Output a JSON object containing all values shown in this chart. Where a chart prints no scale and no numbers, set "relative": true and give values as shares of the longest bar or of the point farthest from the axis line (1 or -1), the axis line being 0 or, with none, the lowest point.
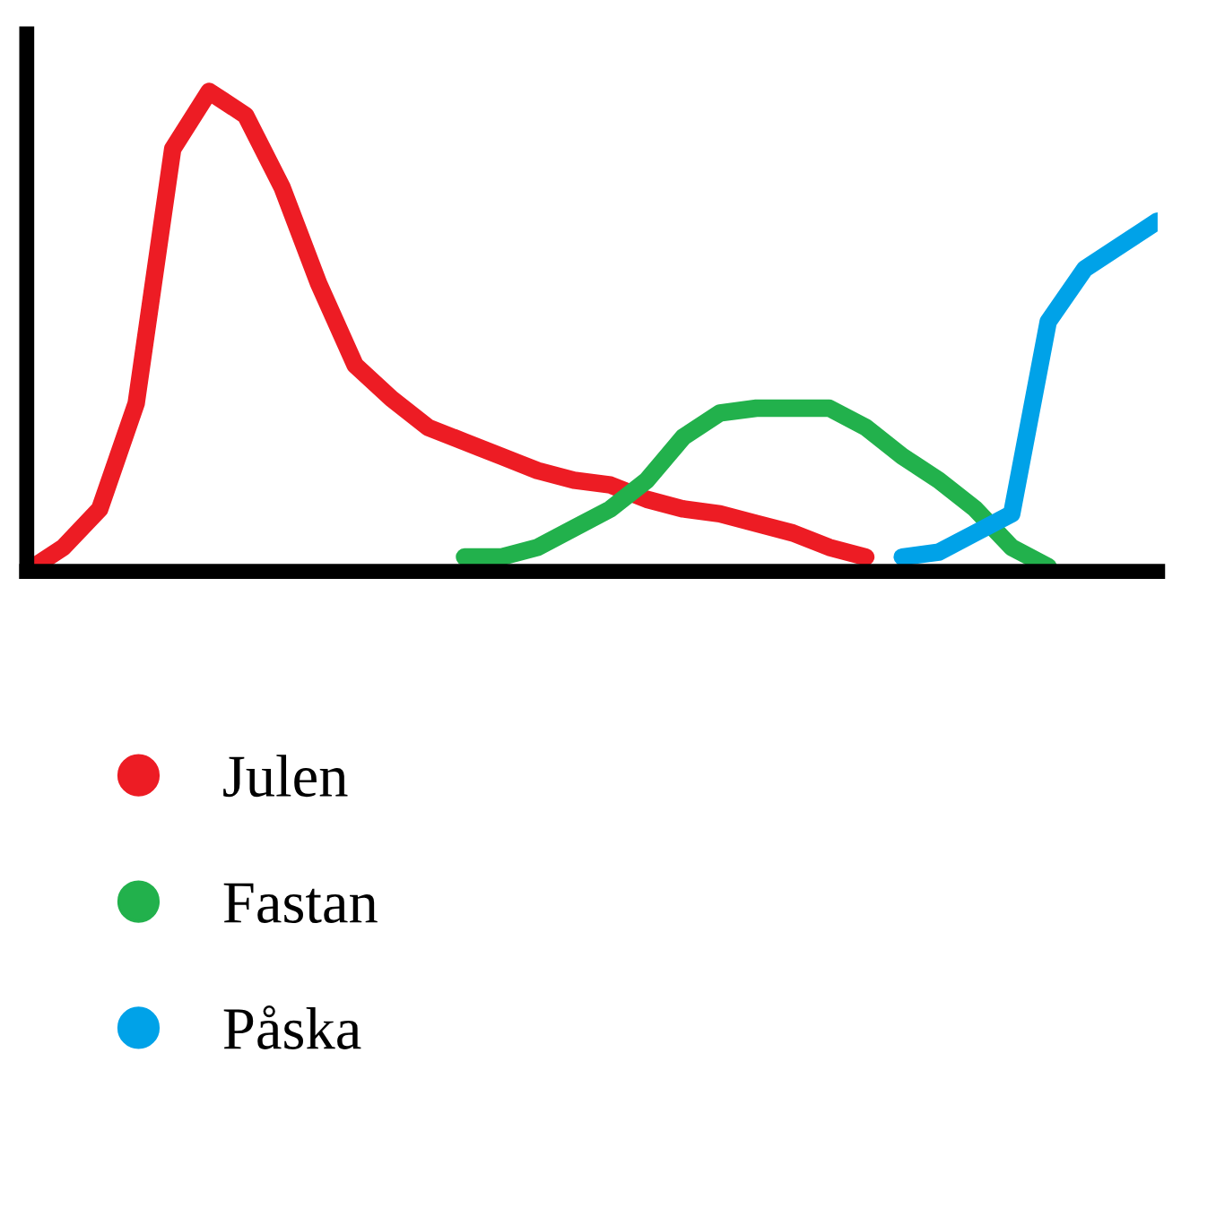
{
  "chart_data": {
    "type": "line",
    "relative": true,
    "legend": "bottom",
    "marker": "none",
    "line_style": "solid",
    "categories": [
      null,
      null,
      null,
      null,
      null,
      null,
      null,
      null,
      null,
      null,
      null,
      null,
      null,
      null,
      null,
      null,
      null,
      null,
      null,
      null,
      null,
      null,
      null,
      null,
      null,
      null,
      null,
      null,
      null,
      null,
      null,
      null
    ],
    "series": [
      {
        "name": "Julen",
        "color": "#ed1c24",
        "values": [
          0,
          0.05,
          0.13,
          0.35,
          0.88,
          1.0,
          0.95,
          0.8,
          0.6,
          0.43,
          0.36,
          0.3,
          0.27,
          0.24,
          0.21,
          0.19,
          0.18,
          0.15,
          0.13,
          0.12,
          0.1,
          0.08,
          0.05,
          0.03,
          null,
          null,
          null,
          null,
          null,
          null,
          null,
          null
        ]
      },
      {
        "name": "Fastan",
        "color": "#22b14c",
        "values": [
          null,
          null,
          null,
          null,
          null,
          null,
          null,
          null,
          null,
          null,
          null,
          null,
          0.03,
          0.03,
          0.05,
          0.09,
          0.13,
          0.19,
          0.28,
          0.33,
          0.34,
          0.34,
          0.34,
          0.3,
          0.24,
          0.19,
          0.13,
          0.05,
          0.01,
          null,
          null,
          null
        ]
      },
      {
        "name": "Påska",
        "color": "#00a2e8",
        "values": [
          null,
          null,
          null,
          null,
          null,
          null,
          null,
          null,
          null,
          null,
          null,
          null,
          null,
          null,
          null,
          null,
          null,
          null,
          null,
          null,
          null,
          null,
          null,
          null,
          0.03,
          0.04,
          0.08,
          0.12,
          0.52,
          0.63,
          0.68,
          0.73
        ]
      }
    ]
  }
}
